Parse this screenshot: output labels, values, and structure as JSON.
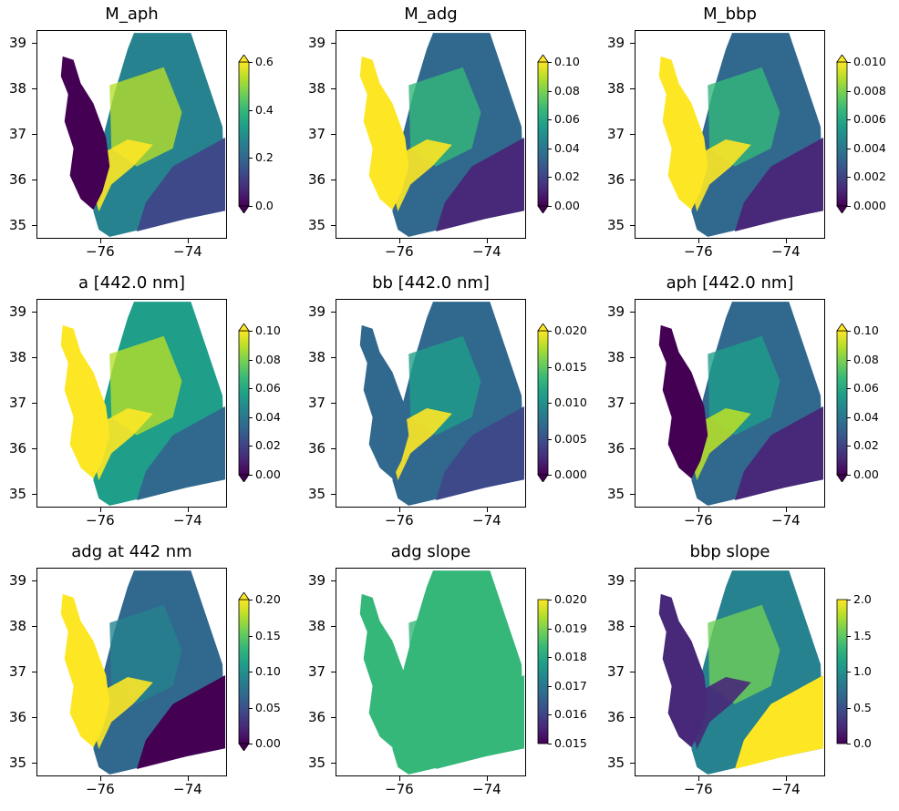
{
  "colors": {
    "viridis": [
      "#440154",
      "#482878",
      "#3e4989",
      "#31688e",
      "#26828e",
      "#1f9e89",
      "#35b779",
      "#6ece58",
      "#b5de2b",
      "#fde725"
    ],
    "land": "#ffffff"
  },
  "axes": {
    "y_ticks": [
      "39",
      "38",
      "37",
      "36",
      "35"
    ],
    "x_ticks": [
      "−76",
      "−74"
    ]
  },
  "chart_data": [
    {
      "type": "heatmap",
      "title": "M_aph",
      "colorbar": {
        "ticks": [
          "0.6",
          "0.4",
          "0.2",
          "0.0"
        ],
        "range": [
          0.0,
          0.6
        ],
        "extend": "both"
      }
    },
    {
      "type": "heatmap",
      "title": "M_adg",
      "colorbar": {
        "ticks": [
          "0.10",
          "0.08",
          "0.06",
          "0.04",
          "0.02",
          "0.00"
        ],
        "range": [
          0.0,
          0.1
        ],
        "extend": "both"
      }
    },
    {
      "type": "heatmap",
      "title": "M_bbp",
      "colorbar": {
        "ticks": [
          "0.010",
          "0.008",
          "0.006",
          "0.004",
          "0.002",
          "0.000"
        ],
        "range": [
          0.0,
          0.01
        ],
        "extend": "both"
      }
    },
    {
      "type": "heatmap",
      "title": "a [442.0 nm]",
      "colorbar": {
        "ticks": [
          "0.10",
          "0.08",
          "0.06",
          "0.04",
          "0.02",
          "0.00"
        ],
        "range": [
          0.0,
          0.1
        ],
        "extend": "both"
      }
    },
    {
      "type": "heatmap",
      "title": "bb [442.0 nm]",
      "colorbar": {
        "ticks": [
          "0.020",
          "0.015",
          "0.010",
          "0.005",
          "0.000"
        ],
        "range": [
          0.0,
          0.02
        ],
        "extend": "both"
      }
    },
    {
      "type": "heatmap",
      "title": "aph [442.0 nm]",
      "colorbar": {
        "ticks": [
          "0.10",
          "0.08",
          "0.06",
          "0.04",
          "0.02",
          "0.00"
        ],
        "range": [
          0.0,
          0.1
        ],
        "extend": "both"
      }
    },
    {
      "type": "heatmap",
      "title": "adg at 442 nm",
      "colorbar": {
        "ticks": [
          "0.20",
          "0.15",
          "0.10",
          "0.05",
          "0.00"
        ],
        "range": [
          0.0,
          0.2
        ],
        "extend": "both"
      }
    },
    {
      "type": "heatmap",
      "title": "adg slope",
      "colorbar": {
        "ticks": [
          "0.020",
          "0.019",
          "0.018",
          "0.017",
          "0.016",
          "0.015"
        ],
        "range": [
          0.015,
          0.02
        ],
        "extend": "none"
      }
    },
    {
      "type": "heatmap",
      "title": "bbp slope",
      "colorbar": {
        "ticks": [
          "2.0",
          "1.5",
          "1.0",
          "0.5",
          "0.0"
        ],
        "range": [
          0.0,
          2.0
        ],
        "extend": "none"
      }
    }
  ]
}
